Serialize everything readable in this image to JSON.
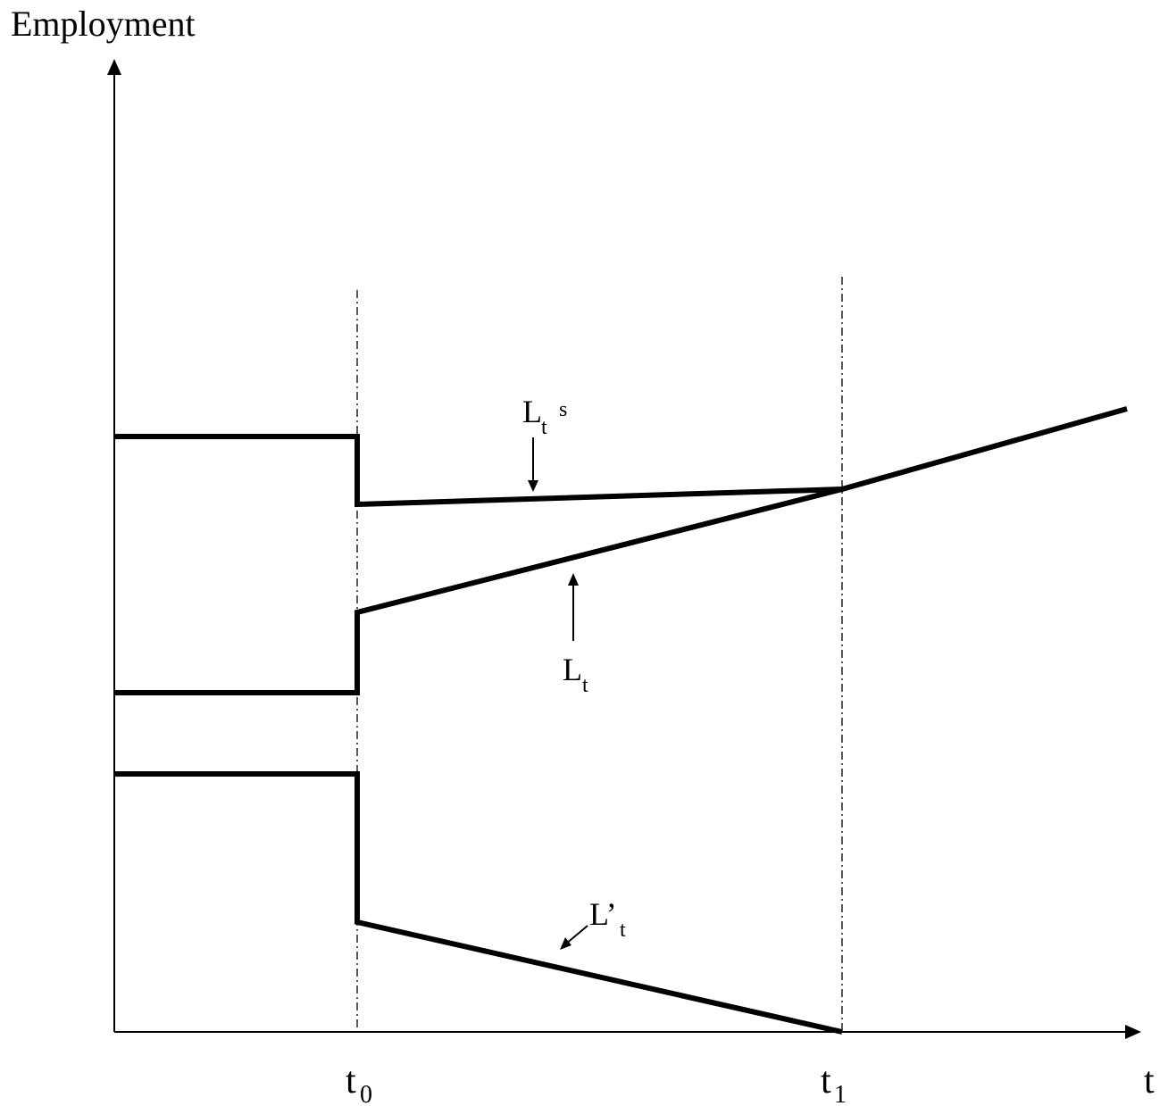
{
  "diagram": {
    "y_axis_label": "Employment",
    "x_axis_label": "t",
    "ticks": {
      "t0": {
        "base": "t",
        "sub": "0"
      },
      "t1": {
        "base": "t",
        "sub": "1"
      }
    },
    "curves": {
      "Ls": {
        "base": "L",
        "sub": "t",
        "sup": "s"
      },
      "L": {
        "base": "L",
        "sub": "t"
      },
      "Lprime": {
        "base": "L’",
        "sub": "t"
      }
    }
  }
}
